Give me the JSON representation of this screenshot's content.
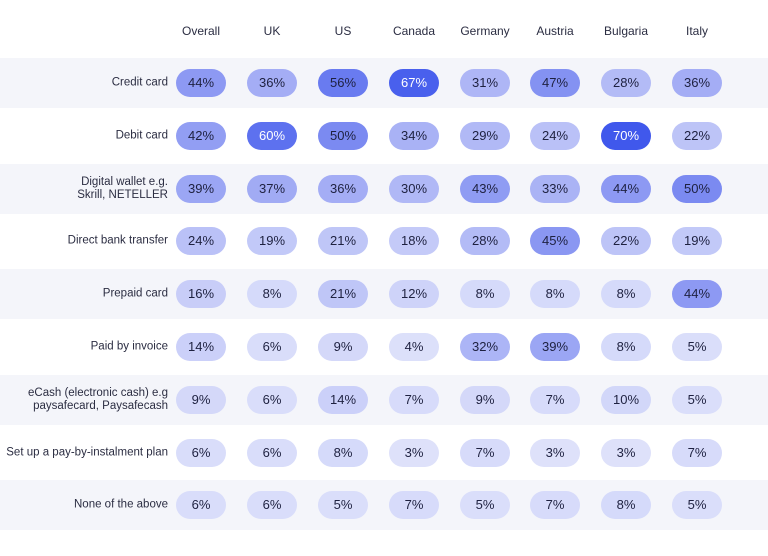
{
  "chart_data": {
    "type": "heatmap",
    "title": "",
    "columns": [
      "Overall",
      "UK",
      "US",
      "Canada",
      "Germany",
      "Austria",
      "Bulgaria",
      "Italy"
    ],
    "rows": [
      "Credit card",
      "Debit card",
      "Digital wallet e.g.\nSkrill, NETELLER",
      "Direct bank transfer",
      "Prepaid card",
      "Paid by invoice",
      "eCash (electronic cash) e.g\npaysafecard, Paysafecash",
      "Set up a pay-by-instalment plan",
      "None of the above"
    ],
    "values": [
      [
        44,
        36,
        56,
        67,
        31,
        47,
        28,
        36
      ],
      [
        42,
        60,
        50,
        34,
        29,
        24,
        70,
        22
      ],
      [
        39,
        37,
        36,
        30,
        43,
        33,
        44,
        50
      ],
      [
        24,
        19,
        21,
        18,
        28,
        45,
        22,
        19
      ],
      [
        16,
        8,
        21,
        12,
        8,
        8,
        8,
        44
      ],
      [
        14,
        6,
        9,
        4,
        32,
        39,
        8,
        5
      ],
      [
        9,
        6,
        14,
        7,
        9,
        7,
        10,
        5
      ],
      [
        6,
        6,
        8,
        3,
        7,
        3,
        3,
        7
      ],
      [
        6,
        6,
        5,
        7,
        5,
        7,
        8,
        5
      ]
    ],
    "unit": "%",
    "color_scale": {
      "low": "#e3e6fb",
      "mid": "#a7b0f5",
      "high": "#4058ec"
    }
  }
}
